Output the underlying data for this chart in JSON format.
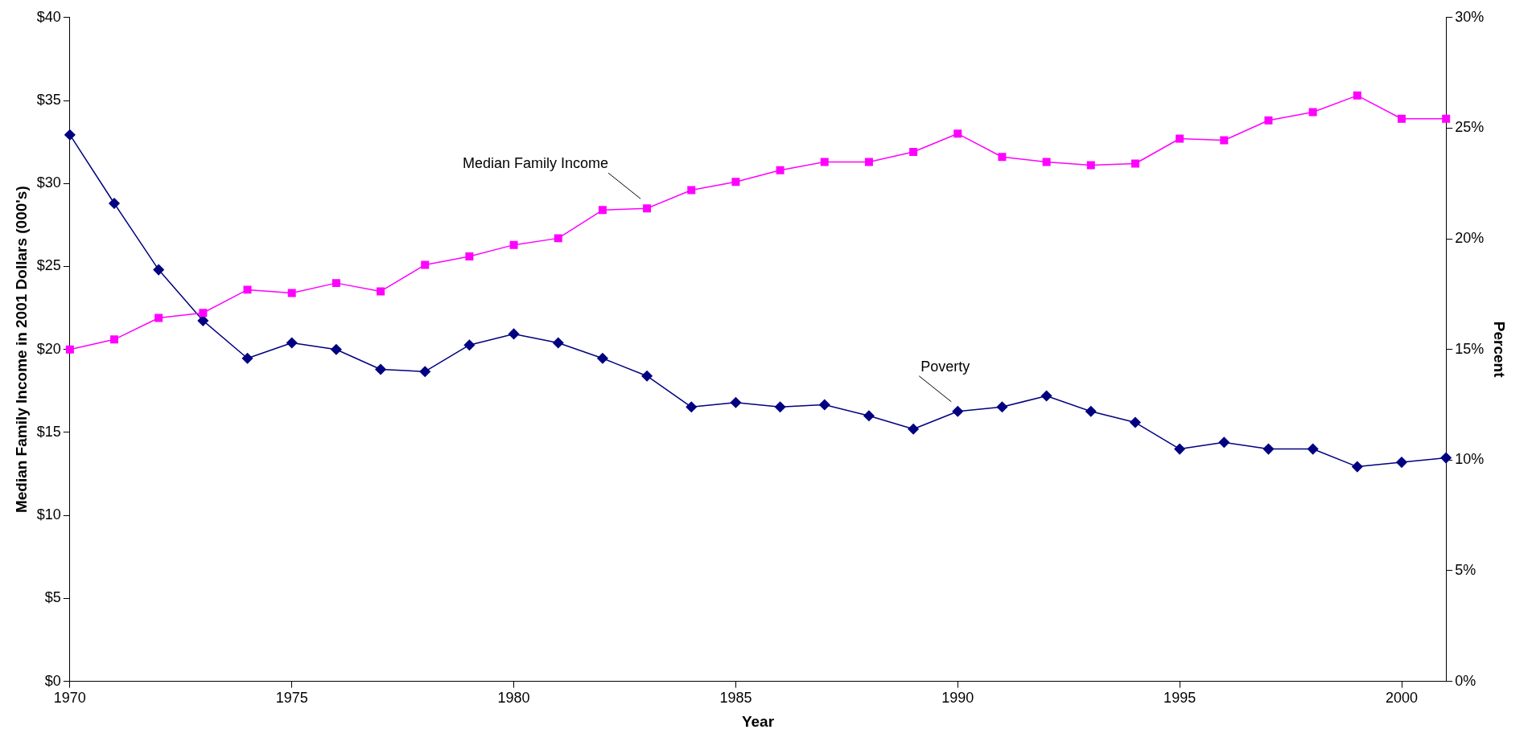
{
  "chart_data": {
    "type": "line",
    "xlabel": "Year",
    "ylabel": "Median Family Income in 2001 Dollars (000's)",
    "y2label": "Percent",
    "x": [
      1970,
      1971,
      1972,
      1973,
      1974,
      1975,
      1976,
      1977,
      1978,
      1979,
      1980,
      1981,
      1982,
      1983,
      1984,
      1985,
      1986,
      1987,
      1988,
      1989,
      1990,
      1991,
      1992,
      1993,
      1994,
      1995,
      1996,
      1997,
      1998,
      1999,
      2000,
      2001
    ],
    "xlim": [
      1970,
      2001
    ],
    "xticks": [
      1970,
      1975,
      1980,
      1985,
      1990,
      1995,
      2000
    ],
    "ylim": [
      0,
      40
    ],
    "yticks": [
      {
        "value": 0,
        "label": "$0"
      },
      {
        "value": 5,
        "label": "$5"
      },
      {
        "value": 10,
        "label": "$10"
      },
      {
        "value": 15,
        "label": "$15"
      },
      {
        "value": 20,
        "label": "$20"
      },
      {
        "value": 25,
        "label": "$25"
      },
      {
        "value": 30,
        "label": "$30"
      },
      {
        "value": 35,
        "label": "$35"
      },
      {
        "value": 40,
        "label": "$40"
      }
    ],
    "y2lim": [
      0,
      30
    ],
    "y2ticks": [
      {
        "value": 0,
        "label": "0%"
      },
      {
        "value": 5,
        "label": "5%"
      },
      {
        "value": 10,
        "label": "10%"
      },
      {
        "value": 15,
        "label": "15%"
      },
      {
        "value": 20,
        "label": "20%"
      },
      {
        "value": 25,
        "label": "25%"
      },
      {
        "value": 30,
        "label": "30%"
      }
    ],
    "grid": false,
    "legend": false,
    "line_style": "solid",
    "series": [
      {
        "name": "Median Family Income",
        "color": "#ff00ff",
        "marker": "square",
        "values": [
          20.0,
          20.6,
          21.9,
          22.2,
          23.6,
          23.4,
          24.0,
          23.5,
          25.1,
          25.6,
          26.3,
          26.7,
          28.4,
          28.5,
          29.6,
          30.1,
          30.8,
          31.3,
          31.3,
          31.9,
          33.0,
          31.6,
          31.3,
          31.1,
          31.2,
          32.7,
          32.6,
          33.8,
          34.3,
          35.3,
          33.9,
          33.9
        ]
      },
      {
        "name": "Poverty",
        "color": "#000080",
        "marker": "diamond",
        "axis": "y2",
        "values": [
          24.7,
          21.6,
          18.6,
          16.3,
          14.6,
          15.3,
          15.0,
          14.1,
          14.0,
          15.2,
          15.7,
          15.3,
          14.6,
          13.8,
          12.4,
          12.6,
          12.4,
          12.5,
          12.0,
          11.4,
          12.2,
          12.4,
          12.9,
          12.2,
          11.7,
          10.5,
          10.8,
          10.5,
          10.5,
          9.7,
          9.9,
          10.1
        ]
      }
    ]
  }
}
